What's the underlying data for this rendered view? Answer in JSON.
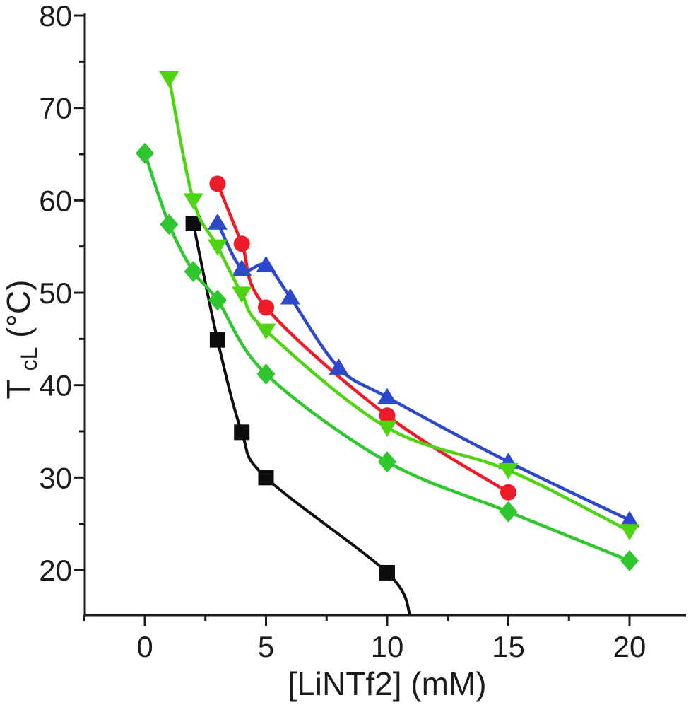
{
  "figure": {
    "background": "#ffffff",
    "axis_color": "#1b1b1b"
  },
  "chart_data": {
    "type": "scatter",
    "title": "",
    "xlabel": "[LiNTf2] (mM)",
    "ylabel": {
      "main": "T",
      "sub": "cL",
      "rest": " (°C)"
    },
    "x_axis": {
      "min": -2.55,
      "max": 22.2,
      "major_ticks": [
        0,
        5,
        10,
        15,
        20
      ],
      "minor_ticks": [
        -2.5,
        2.5,
        7.5,
        12.5,
        17.5
      ]
    },
    "y_axis": {
      "min": 15.1,
      "max": 80,
      "major_ticks": [
        20,
        30,
        40,
        50,
        60,
        70,
        80
      ],
      "minor_ticks": [
        25,
        35,
        45,
        55,
        65,
        75
      ]
    },
    "grid": false,
    "legend": "none",
    "series": [
      {
        "name": "red-circles",
        "marker": "circle",
        "color": "#ee1b28",
        "points": [
          [
            3,
            61.8
          ],
          [
            4,
            55.3
          ],
          [
            5,
            48.4
          ],
          [
            10,
            36.7
          ],
          [
            15,
            28.4
          ]
        ]
      },
      {
        "name": "blue-up-triangles",
        "marker": "triangle-up",
        "color": "#2d49cb",
        "points": [
          [
            3,
            57.6
          ],
          [
            4,
            52.6
          ],
          [
            5,
            53.0
          ],
          [
            6,
            49.5
          ],
          [
            8,
            41.9
          ],
          [
            10,
            38.7
          ],
          [
            15,
            31.7
          ],
          [
            20,
            25.4
          ]
        ]
      },
      {
        "name": "black-squares",
        "marker": "square",
        "color": "#0d0d0d",
        "points": [
          [
            2,
            57.5
          ],
          [
            3,
            44.9
          ],
          [
            4,
            34.9
          ],
          [
            5,
            30.0
          ],
          [
            10,
            19.7
          ]
        ],
        "line_tail": [
          [
            10.95,
            15.1
          ]
        ]
      },
      {
        "name": "green-down-triangles",
        "marker": "triangle-down",
        "color": "#4fd414",
        "points": [
          [
            1,
            73.2
          ],
          [
            2,
            60.0
          ],
          [
            3,
            55.0
          ],
          [
            4,
            49.9
          ],
          [
            5,
            45.9
          ],
          [
            10,
            35.4
          ],
          [
            15,
            30.8
          ],
          [
            20,
            24.2
          ]
        ]
      },
      {
        "name": "green-diamonds",
        "marker": "diamond",
        "color": "#2ec72e",
        "points": [
          [
            0,
            65.1
          ],
          [
            1,
            57.4
          ],
          [
            2,
            52.3
          ],
          [
            3,
            49.2
          ],
          [
            5,
            41.2
          ],
          [
            10,
            31.7
          ],
          [
            15,
            26.3
          ],
          [
            20,
            21.0
          ]
        ]
      }
    ]
  }
}
